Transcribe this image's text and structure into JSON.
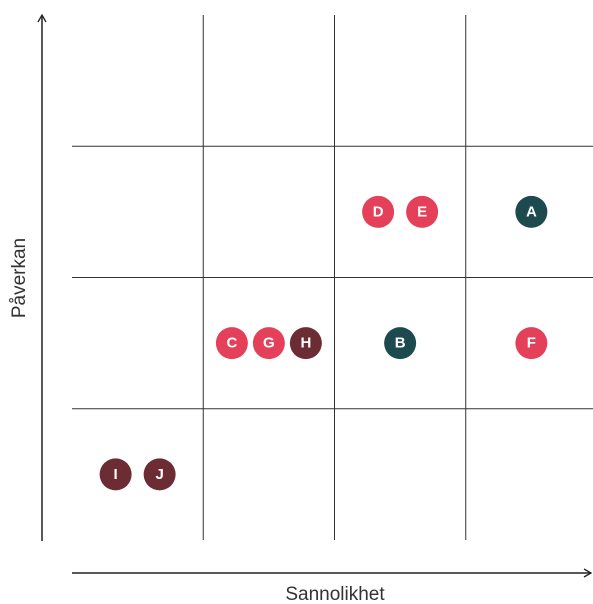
{
  "x_axis_label": "Sannolikhet",
  "y_axis_label": "Påverkan",
  "grid": {
    "rows": [
      [
        [],
        [],
        [],
        []
      ],
      [
        [],
        [],
        [
          {
            "label": "D",
            "color": "#e4405a"
          },
          {
            "label": "E",
            "color": "#e4405a"
          }
        ],
        [
          {
            "label": "A",
            "color": "#1d4a4f"
          }
        ]
      ],
      [
        [],
        [
          {
            "label": "C",
            "color": "#e4405a"
          },
          {
            "label": "G",
            "color": "#e4405a"
          },
          {
            "label": "H",
            "color": "#6b2d33"
          }
        ],
        [
          {
            "label": "B",
            "color": "#1d4a4f"
          }
        ],
        [
          {
            "label": "F",
            "color": "#e4405a"
          }
        ]
      ],
      [
        [
          {
            "label": "I",
            "color": "#6b2d33"
          },
          {
            "label": "J",
            "color": "#6b2d33"
          }
        ],
        [],
        [],
        []
      ]
    ]
  }
}
